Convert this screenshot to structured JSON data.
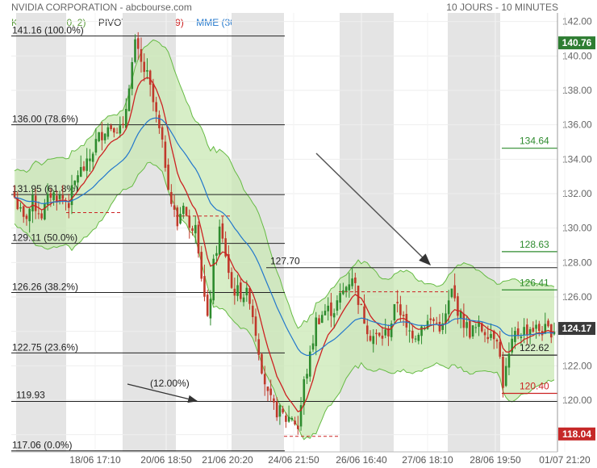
{
  "header": {
    "title": "NVIDIA CORPORATION - abcbourse.com",
    "period": "10 JOURS - 10 MINUTES"
  },
  "legend": {
    "keltner": "KELTNER (20, 2)",
    "pivots": "PIVOTS",
    "mmh": "MMH (9)",
    "mme": "MME (30)"
  },
  "colors": {
    "keltner": "#66bb44",
    "keltner_fill": "#c9e8b4",
    "pivots": "#333333",
    "mmh": "#cc2222",
    "mme": "#2277cc",
    "up": "#2e8b2e",
    "down": "#c0392b",
    "last_price_bg": "#2e7d32",
    "low_price_bg": "#c62828",
    "shade": "#e4e4e4"
  },
  "chart_data": {
    "type": "candlestick",
    "title": "NVIDIA CORPORATION",
    "ylim": [
      117,
      142.5
    ],
    "y_ticks": [
      118,
      120,
      122,
      124,
      126,
      128,
      130,
      132,
      134,
      136,
      138,
      140,
      142
    ],
    "y_tick_labels": [
      "118.00",
      "120.00",
      "122.00",
      "124.00",
      "126.00",
      "128.00",
      "130.00",
      "132.00",
      "134.00",
      "136.00",
      "138.00",
      "140.00",
      "142.00"
    ],
    "x_tick_labels": [
      "18/06 17:10",
      "20/06 18:50",
      "21/06 20:20",
      "24/06 21:50",
      "26/06 16:40",
      "27/06 18:10",
      "28/06 19:50",
      "01/07 21:20"
    ],
    "fibonacci_levels": [
      {
        "label": "141.16",
        "pct": "(100.0%)",
        "value": 141.16
      },
      {
        "label": "136.00",
        "pct": "(78.6%)",
        "value": 136.0
      },
      {
        "label": "131.95",
        "pct": "(61.8%)",
        "value": 131.95
      },
      {
        "label": "129.11",
        "pct": "(50.0%)",
        "value": 129.11
      },
      {
        "label": "126.26",
        "pct": "(38.2%)",
        "value": 126.26
      },
      {
        "label": "122.75",
        "pct": "(23.6%)",
        "value": 122.75
      },
      {
        "label": "117.06",
        "pct": "(0.0%)",
        "value": 117.06
      }
    ],
    "support_line": {
      "label": "119.93",
      "value": 119.93
    },
    "resistance_line": {
      "label": "127.70",
      "value": 127.7
    },
    "annotation": "(12.00%)",
    "pivot_levels": [
      {
        "label": "134.64",
        "value": 134.64,
        "color": "green"
      },
      {
        "label": "128.63",
        "value": 128.63,
        "color": "green"
      },
      {
        "label": "126.41",
        "value": 126.41,
        "color": "green"
      },
      {
        "label": "122.62",
        "value": 122.62,
        "color": "dark"
      },
      {
        "label": "120.40",
        "value": 120.4,
        "color": "red"
      }
    ],
    "price_badges": [
      {
        "label": "140.76",
        "value": 140.76,
        "type": "high"
      },
      {
        "label": "124.17",
        "value": 124.17,
        "type": "last"
      },
      {
        "label": "118.04",
        "value": 118.04,
        "type": "low"
      }
    ],
    "close_path": [
      [
        0,
        131.8
      ],
      [
        3,
        130.4
      ],
      [
        6,
        131.5
      ],
      [
        9,
        130.8
      ],
      [
        12,
        132.0
      ],
      [
        15,
        131.8
      ],
      [
        18,
        131.5
      ],
      [
        21,
        133.2
      ],
      [
        24,
        133.6
      ],
      [
        27,
        135.0
      ],
      [
        30,
        135.8
      ],
      [
        33,
        136.0
      ],
      [
        36,
        135.6
      ],
      [
        38,
        138.5
      ],
      [
        40,
        140.6
      ],
      [
        42,
        139.5
      ],
      [
        44,
        138.8
      ],
      [
        47,
        136.5
      ],
      [
        50,
        133.8
      ],
      [
        52,
        131.5
      ],
      [
        54,
        130.2
      ],
      [
        56,
        131.6
      ],
      [
        58,
        129.8
      ],
      [
        60,
        130.6
      ],
      [
        62,
        127.3
      ],
      [
        64,
        124.5
      ],
      [
        66,
        127.8
      ],
      [
        68,
        129.9
      ],
      [
        70,
        128.5
      ],
      [
        72,
        126.5
      ],
      [
        74,
        126.3
      ],
      [
        76,
        126.2
      ],
      [
        78,
        126.0
      ],
      [
        80,
        124.0
      ],
      [
        82,
        122.0
      ],
      [
        84,
        120.2
      ],
      [
        86,
        119.5
      ],
      [
        88,
        119.3
      ],
      [
        90,
        118.9
      ],
      [
        92,
        119.1
      ],
      [
        94,
        118.4
      ],
      [
        96,
        121.0
      ],
      [
        98,
        122.5
      ],
      [
        100,
        124.6
      ],
      [
        103,
        125.2
      ],
      [
        106,
        125.3
      ],
      [
        109,
        126.3
      ],
      [
        112,
        127.3
      ],
      [
        115,
        125.2
      ],
      [
        118,
        123.8
      ],
      [
        121,
        123.6
      ],
      [
        124,
        124.0
      ],
      [
        127,
        125.8
      ],
      [
        130,
        124.0
      ],
      [
        133,
        123.9
      ],
      [
        136,
        124.5
      ],
      [
        139,
        124.6
      ],
      [
        142,
        124.2
      ],
      [
        145,
        126.3
      ],
      [
        148,
        124.8
      ],
      [
        151,
        124.0
      ],
      [
        154,
        124.2
      ],
      [
        157,
        124.0
      ],
      [
        160,
        123.8
      ],
      [
        162,
        121.0
      ],
      [
        164,
        122.5
      ],
      [
        166,
        123.8
      ],
      [
        168,
        124.0
      ],
      [
        171,
        124.2
      ],
      [
        174,
        124.1
      ],
      [
        177,
        124.0
      ],
      [
        179,
        124.17
      ]
    ],
    "n_candles": 180
  }
}
